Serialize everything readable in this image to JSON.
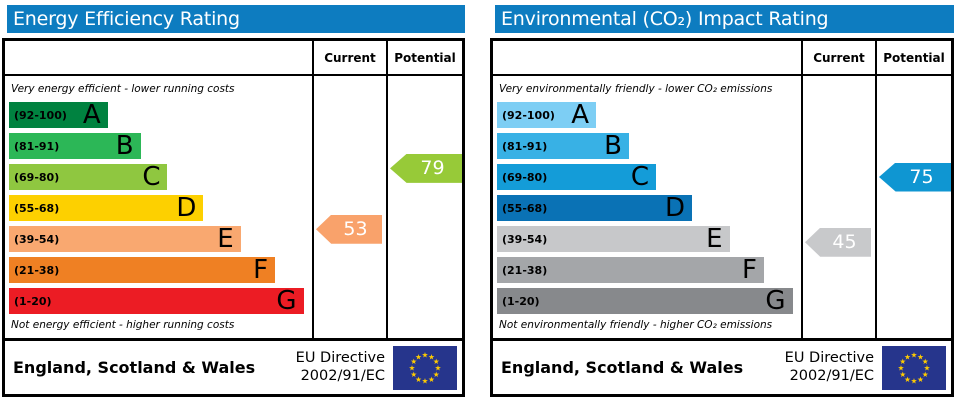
{
  "chart_data": [
    {
      "type": "bar",
      "title": "Energy Efficiency Rating",
      "header_color": "#0d7cc0",
      "columns": {
        "current": "Current",
        "potential": "Potential"
      },
      "notes": {
        "top": "Very energy efficient - lower running costs",
        "bottom": "Not energy efficient - higher running costs"
      },
      "categories": [
        "A",
        "B",
        "C",
        "D",
        "E",
        "F",
        "G"
      ],
      "range_labels": [
        "(92-100)",
        "(81-91)",
        "(69-80)",
        "(55-68)",
        "(39-54)",
        "(21-38)",
        "(1-20)"
      ],
      "ranges": [
        [
          92,
          100
        ],
        [
          81,
          91
        ],
        [
          69,
          80
        ],
        [
          55,
          68
        ],
        [
          39,
          54
        ],
        [
          21,
          38
        ],
        [
          1,
          20
        ]
      ],
      "bar_colors": [
        "#008240",
        "#2cb757",
        "#8fc740",
        "#fdd000",
        "#f9a870",
        "#ef8023",
        "#ec1c24"
      ],
      "bar_widths_pct": [
        33,
        44,
        53,
        65,
        77.5,
        89,
        98.5
      ],
      "axis_range": [
        1,
        100
      ],
      "legend_position": "none",
      "markers": {
        "current": {
          "value": 53,
          "color": "#f9a26b"
        },
        "potential": {
          "value": 79,
          "color": "#97ca38"
        }
      },
      "footer": {
        "region": "England, Scotland & Wales",
        "directive": [
          "EU Directive",
          "2002/91/EC"
        ],
        "flag_icon": "eu-flag"
      }
    },
    {
      "type": "bar",
      "title": "Environmental (CO₂) Impact Rating",
      "header_color": "#0d7cc0",
      "columns": {
        "current": "Current",
        "potential": "Potential"
      },
      "notes": {
        "top": "Very environmentally friendly - lower CO₂ emissions",
        "bottom": "Not environmentally friendly - higher CO₂ emissions"
      },
      "categories": [
        "A",
        "B",
        "C",
        "D",
        "E",
        "F",
        "G"
      ],
      "range_labels": [
        "(92-100)",
        "(81-91)",
        "(69-80)",
        "(55-68)",
        "(39-54)",
        "(21-38)",
        "(1-20)"
      ],
      "ranges": [
        [
          92,
          100
        ],
        [
          81,
          91
        ],
        [
          69,
          80
        ],
        [
          55,
          68
        ],
        [
          39,
          54
        ],
        [
          21,
          38
        ],
        [
          1,
          20
        ]
      ],
      "bar_colors": [
        "#7dcef4",
        "#38b1e5",
        "#149cd8",
        "#0a72b5",
        "#c7c8ca",
        "#a4a6a9",
        "#87898c"
      ],
      "bar_widths_pct": [
        33,
        44,
        53,
        65,
        77.5,
        89,
        98.5
      ],
      "axis_range": [
        1,
        100
      ],
      "legend_position": "none",
      "markers": {
        "current": {
          "value": 45,
          "color": "#c8c9cb"
        },
        "potential": {
          "value": 75,
          "color": "#0f96d2"
        }
      },
      "footer": {
        "region": "England, Scotland & Wales",
        "directive": [
          "EU Directive",
          "2002/91/EC"
        ],
        "flag_icon": "eu-flag"
      }
    }
  ],
  "flag_colors": {
    "background": "#26358c",
    "stars": "#ffcc00"
  }
}
